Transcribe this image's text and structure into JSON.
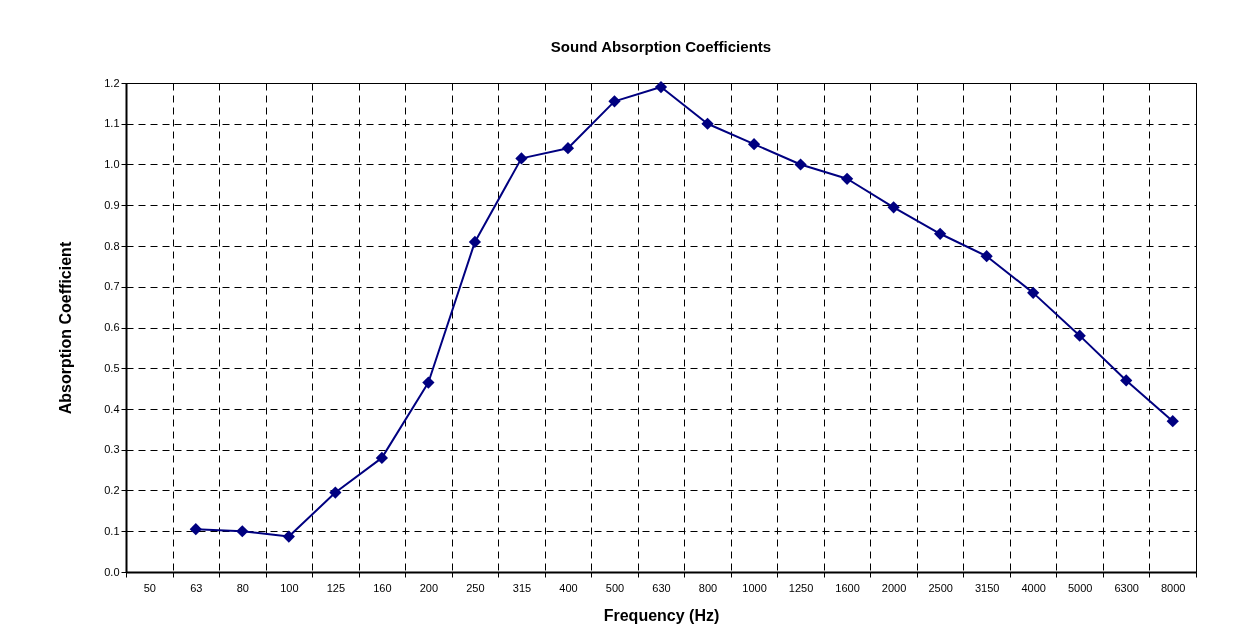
{
  "chart_data": {
    "type": "line",
    "title": "Sound Absorption Coefficients",
    "xlabel": "Frequency (Hz)",
    "ylabel": "Absorption Coefficient",
    "categories": [
      "50",
      "63",
      "80",
      "100",
      "125",
      "160",
      "200",
      "250",
      "315",
      "400",
      "500",
      "630",
      "800",
      "1000",
      "1250",
      "1600",
      "2000",
      "2500",
      "3150",
      "4000",
      "5000",
      "6300",
      "8000"
    ],
    "values": [
      null,
      0.105,
      0.1,
      0.087,
      0.195,
      0.28,
      0.465,
      0.81,
      1.015,
      1.04,
      1.155,
      1.19,
      1.1,
      1.05,
      1.0,
      0.965,
      0.895,
      0.83,
      0.775,
      0.685,
      0.58,
      0.47,
      0.37
    ],
    "color": "#000080",
    "marker": "diamond",
    "line_style": "solid",
    "grid": true,
    "ylim": [
      0,
      1.2
    ],
    "yticks": [
      {
        "value": 0,
        "label": "0.0"
      },
      {
        "value": 0.1,
        "label": "0.1"
      },
      {
        "value": 0.2,
        "label": "0.2"
      },
      {
        "value": 0.3,
        "label": "0.3"
      },
      {
        "value": 0.4,
        "label": "0.4"
      },
      {
        "value": 0.5,
        "label": "0.5"
      },
      {
        "value": 0.6,
        "label": "0.6"
      },
      {
        "value": 0.7,
        "label": "0.7"
      },
      {
        "value": 0.8,
        "label": "0.8"
      },
      {
        "value": 0.9,
        "label": "0.9"
      },
      {
        "value": 1.0,
        "label": "1.0"
      },
      {
        "value": 1.1,
        "label": "1.1"
      },
      {
        "value": 1.2,
        "label": "1.2"
      }
    ]
  }
}
